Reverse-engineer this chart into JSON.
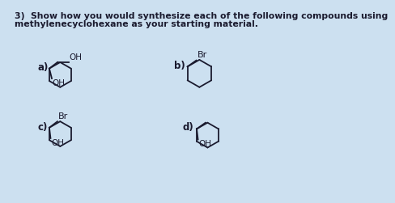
{
  "title_line1": "3)  Show how you would synthesize each of the following compounds using",
  "title_line2": "methylenecyclohexane as your starting material.",
  "label_a": "a)",
  "label_b": "b)",
  "label_c": "c)",
  "label_d": "d)",
  "bg_color": "#cce0f0",
  "font_size_title": 7.8,
  "font_size_label": 8.5,
  "font_size_chem": 7.5,
  "text_color": "#1a1a2e"
}
